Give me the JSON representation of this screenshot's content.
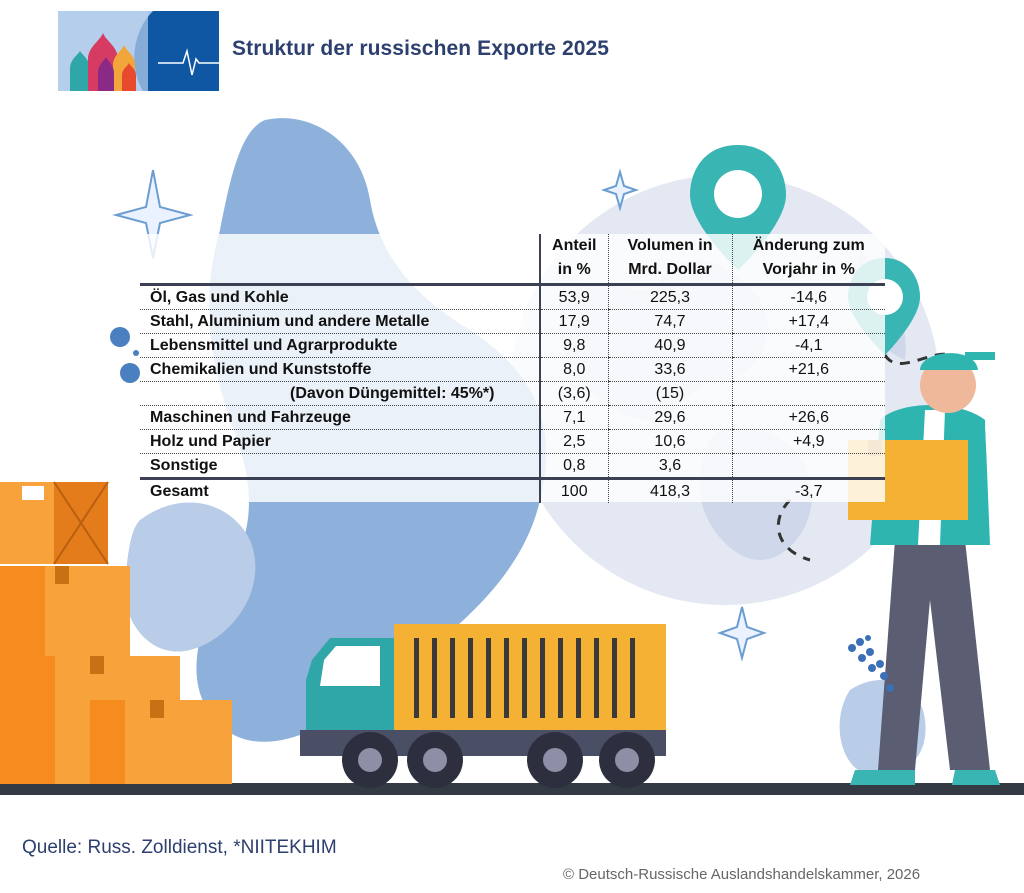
{
  "header": {
    "title": "Struktur der russischen Exporte 2025"
  },
  "chart_data": {
    "type": "table",
    "title": "Struktur der russischen Exporte 2025",
    "columns": [
      {
        "line1": "Anteil",
        "line2": "in %"
      },
      {
        "line1": "Volumen in",
        "line2": "Mrd. Dollar"
      },
      {
        "line1": "Änderung zum",
        "line2": "Vorjahr in %"
      }
    ],
    "rows": [
      {
        "category": "Öl, Gas und Kohle",
        "share": "53,9",
        "volume": "225,3",
        "change": "-14,6"
      },
      {
        "category": "Stahl, Aluminium und andere Metalle",
        "share": "17,9",
        "volume": "74,7",
        "change": "+17,4"
      },
      {
        "category": "Lebensmittel und Agrarprodukte",
        "share": "9,8",
        "volume": "40,9",
        "change": "-4,1"
      },
      {
        "category": "Chemikalien und Kunststoffe",
        "share": "8,0",
        "volume": "33,6",
        "change": "+21,6"
      },
      {
        "category": "(Davon Düngemittel: 45%*)",
        "share": "(3,6)",
        "volume": "(15)",
        "change": "",
        "sub": true
      },
      {
        "category": "Maschinen und Fahrzeuge",
        "share": "7,1",
        "volume": "29,6",
        "change": "+26,6"
      },
      {
        "category": "Holz und Papier",
        "share": "2,5",
        "volume": "10,6",
        "change": "+4,9"
      },
      {
        "category": "Sonstige",
        "share": "0,8",
        "volume": "3,6",
        "change": ""
      }
    ],
    "total": {
      "category": "Gesamt",
      "share": "100",
      "volume": "418,3",
      "change": "-3,7"
    }
  },
  "footer": {
    "source": "Quelle: Russ. Zolldienst, *NIITEKHIM",
    "copyright": "© Deutsch-Russische Auslandshandelskammer, 2026"
  },
  "colors": {
    "title": "#2d3f6e",
    "blob": "#7ea6d6",
    "globe": "#e3e8f2",
    "truck_cargo": "#f5b134",
    "truck_cab": "#2fa7a9",
    "boxes": "#f7a23a",
    "vest": "#2fb5b0",
    "trousers": "#5b5d73",
    "pin": "#39b5b3",
    "ground": "#333a44"
  }
}
